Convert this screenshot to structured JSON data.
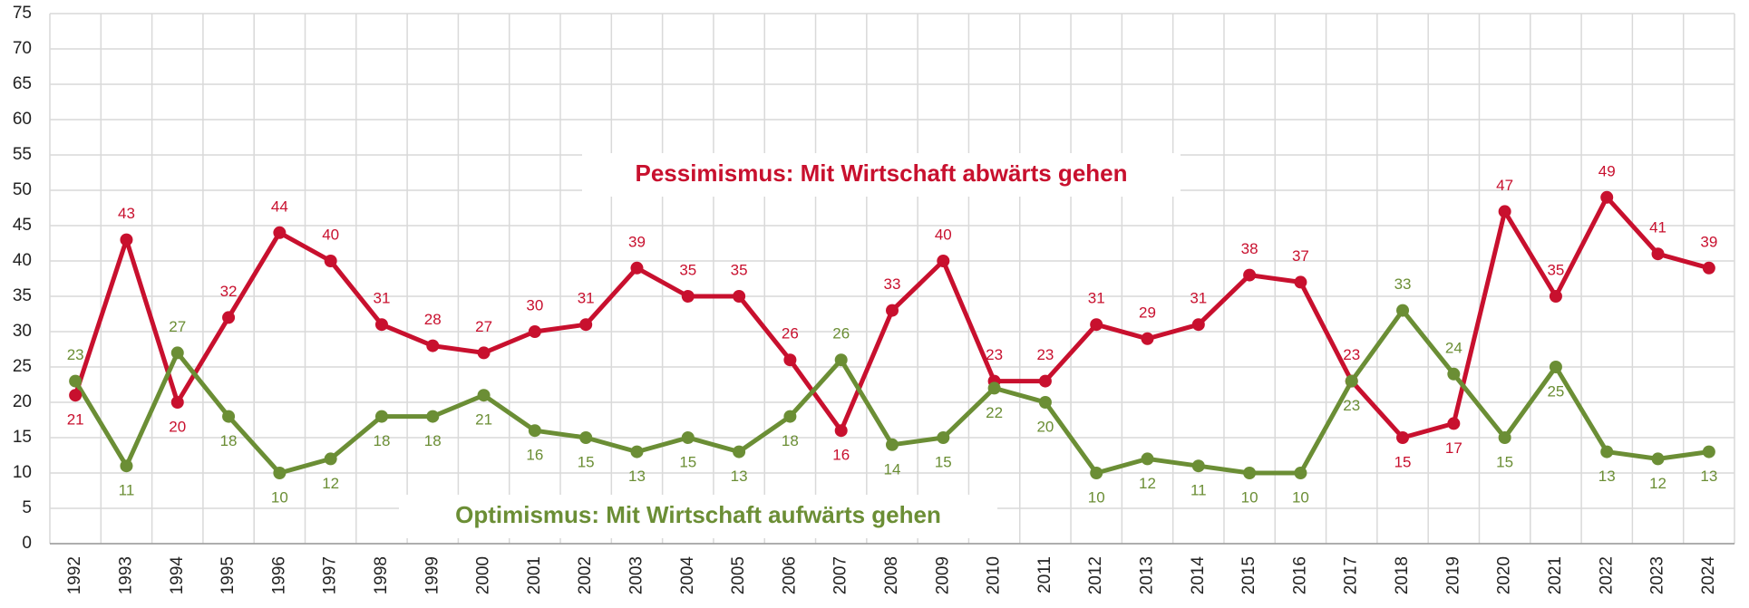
{
  "chart_data": {
    "type": "line",
    "categories": [
      "1992",
      "1993",
      "1994",
      "1995",
      "1996",
      "1997",
      "1998",
      "1999",
      "2000",
      "2001",
      "2002",
      "2003",
      "2004",
      "2005",
      "2006",
      "2007",
      "2008",
      "2009",
      "2010",
      "2011",
      "2012",
      "2013",
      "2014",
      "2015",
      "2016",
      "2017",
      "2018",
      "2019",
      "2020",
      "2021",
      "2022",
      "2023",
      "2024"
    ],
    "series": [
      {
        "name": "Pessimismus: Mit Wirtschaft abwärts gehen",
        "color": "#c8102e",
        "values": [
          21,
          43,
          20,
          32,
          44,
          40,
          31,
          28,
          27,
          30,
          31,
          39,
          35,
          35,
          26,
          16,
          33,
          40,
          23,
          23,
          31,
          29,
          31,
          38,
          37,
          23,
          15,
          17,
          47,
          35,
          49,
          41,
          39
        ]
      },
      {
        "name": "Optimismus: Mit Wirtschaft aufwärts gehen",
        "color": "#6b8e35",
        "values": [
          23,
          11,
          27,
          18,
          10,
          12,
          18,
          18,
          21,
          16,
          15,
          13,
          15,
          13,
          18,
          26,
          14,
          15,
          22,
          20,
          10,
          12,
          11,
          10,
          10,
          23,
          33,
          24,
          15,
          25,
          13,
          12,
          13
        ]
      }
    ],
    "ylim": [
      0,
      75
    ],
    "yticks": [
      0,
      5,
      10,
      15,
      20,
      25,
      30,
      35,
      40,
      45,
      50,
      55,
      60,
      65,
      70,
      75
    ],
    "grid": true
  }
}
